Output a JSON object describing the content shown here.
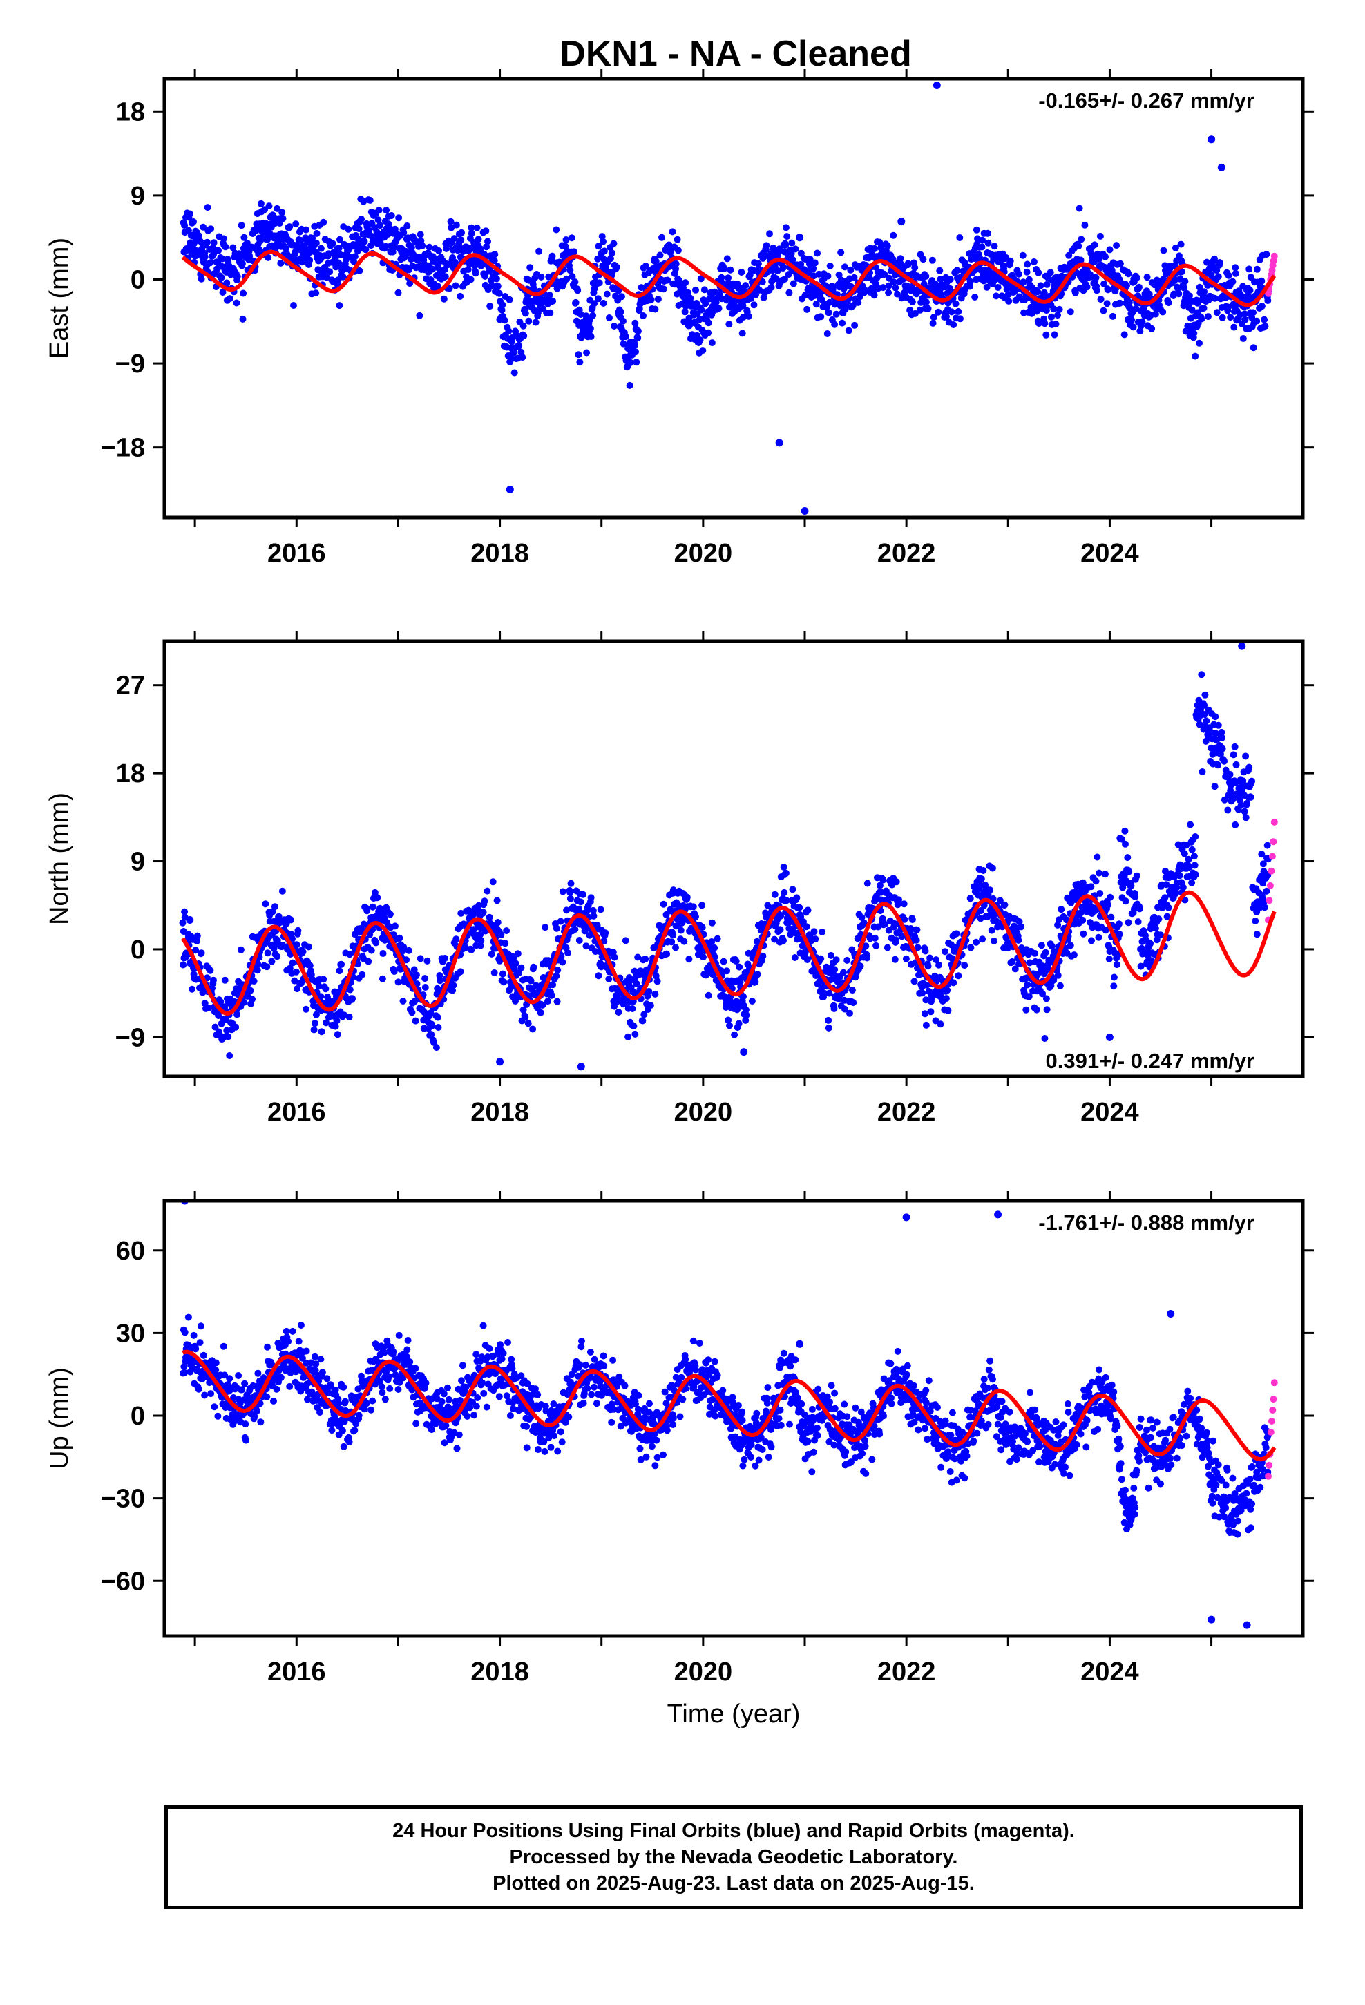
{
  "title": "DKN1  - NA - Cleaned",
  "colors": {
    "final": "#0000ff",
    "rapid": "#ff33cc",
    "model": "#ff0000"
  },
  "chart_data": [
    {
      "type": "scatter",
      "name": "east",
      "ylabel": "East (mm)",
      "ylim": [
        -25.5,
        21.5
      ],
      "xlim": [
        2014.7,
        2025.9
      ],
      "xticks": [
        2016,
        2018,
        2020,
        2022,
        2024
      ],
      "yticks": [
        18,
        9,
        0,
        -9,
        -18
      ],
      "ytick_labels": [
        "18",
        "9",
        "0",
        "−9",
        "−18"
      ],
      "rate_label": "-0.165+/- 0.267 mm/yr",
      "rate_position": "top-right",
      "data_start": 2014.88,
      "data_end": 2025.62,
      "model": {
        "offset": 0.2,
        "trend": -0.165,
        "annual_amp": 1.9,
        "annual_phase": 0.55,
        "semi_amp": 0.4,
        "noise": 1.6,
        "anomalies": [
          {
            "start": 2017.95,
            "end": 2018.3,
            "depth": -7
          },
          {
            "start": 2018.7,
            "end": 2018.95,
            "depth": -8
          },
          {
            "start": 2019.15,
            "end": 2019.4,
            "depth": -7
          },
          {
            "start": 2019.7,
            "end": 2020.15,
            "depth": -6
          },
          {
            "start": 2024.7,
            "end": 2024.95,
            "depth": -6
          }
        ],
        "steps": [
          {
            "start": 2014.88,
            "end": 2017.6,
            "shift": 2.5
          }
        ]
      },
      "outliers": [
        [
          2022.3,
          20.8
        ],
        [
          2018.1,
          -22.5
        ],
        [
          2020.75,
          -17.5
        ],
        [
          2021.0,
          -24.8
        ],
        [
          2025.0,
          15.0
        ],
        [
          2025.1,
          12.0
        ],
        [
          2021.95,
          6.2
        ],
        [
          2020.95,
          4.5
        ]
      ],
      "rapid": {
        "start": 2025.56,
        "end": 2025.62,
        "y": [
          -1.5,
          -1,
          -0.5,
          0,
          0.5,
          1,
          1.5,
          2,
          2.5
        ]
      }
    },
    {
      "type": "scatter",
      "name": "north",
      "ylabel": "North (mm)",
      "ylim": [
        -13,
        31.5
      ],
      "xlim": [
        2014.7,
        2025.9
      ],
      "xticks": [
        2016,
        2018,
        2020,
        2022,
        2024
      ],
      "yticks": [
        27,
        18,
        9,
        0,
        -9
      ],
      "ytick_labels": [
        "27",
        "18",
        "9",
        "0",
        "−9"
      ],
      "rate_label": "0.391+/- 0.247 mm/yr",
      "rate_position": "bottom-right",
      "data_start": 2014.88,
      "data_end": 2025.62,
      "model": {
        "offset": -0.4,
        "trend": 0.391,
        "annual_amp": 4.3,
        "annual_phase": 0.55,
        "semi_amp": 0.3,
        "noise": 1.7,
        "anomalies": [],
        "steps": [
          {
            "start": 2024.1,
            "end": 2024.3,
            "shift": 8
          },
          {
            "start": 2024.3,
            "end": 2024.85,
            "shift": 3
          },
          {
            "start": 2024.85,
            "end": 2025.4,
            "shift": 19
          },
          {
            "start": 2025.4,
            "end": 2025.62,
            "shift": 6
          }
        ]
      },
      "outliers": [
        [
          2025.3,
          31.0
        ],
        [
          2018.0,
          -11.5
        ],
        [
          2018.8,
          -12.0
        ],
        [
          2020.4,
          -10.5
        ],
        [
          2024.0,
          -9.0
        ],
        [
          2014.95,
          3.0
        ]
      ],
      "rapid": {
        "start": 2025.56,
        "end": 2025.62,
        "y": [
          3,
          5,
          6.5,
          8,
          9.5,
          11,
          13
        ]
      }
    },
    {
      "type": "scatter",
      "name": "up",
      "ylabel": "Up (mm)",
      "xlabel": "Time (year)",
      "ylim": [
        -80,
        78
      ],
      "xlim": [
        2014.7,
        2025.9
      ],
      "xticks": [
        2016,
        2018,
        2020,
        2022,
        2024
      ],
      "yticks": [
        60,
        30,
        0,
        -30,
        -60
      ],
      "ytick_labels": [
        "60",
        "30",
        "0",
        "−30",
        "−60"
      ],
      "rate_label": "-1.761+/- 0.888 mm/yr",
      "rate_position": "top-right",
      "data_start": 2014.88,
      "data_end": 2025.62,
      "model": {
        "offset": 4,
        "trend": -1.761,
        "annual_amp": 10,
        "annual_phase": 0.7,
        "semi_amp": 1,
        "noise": 5,
        "anomalies": [
          {
            "start": 2020.9,
            "end": 2021.15,
            "depth": -18
          },
          {
            "start": 2022.85,
            "end": 2023.2,
            "depth": -16
          },
          {
            "start": 2024.05,
            "end": 2024.3,
            "depth": -35
          },
          {
            "start": 2024.8,
            "end": 2025.5,
            "depth": -30
          }
        ],
        "steps": []
      },
      "outliers": [
        [
          2014.9,
          78.0
        ],
        [
          2022.0,
          72.0
        ],
        [
          2022.9,
          73.0
        ],
        [
          2024.6,
          37.0
        ],
        [
          2025.0,
          -74.0
        ],
        [
          2025.35,
          -76.0
        ],
        [
          2020.95,
          26.0
        ],
        [
          2015.0,
          25.0
        ]
      ],
      "rapid": {
        "start": 2025.56,
        "end": 2025.62,
        "y": [
          -22,
          -18,
          -14,
          -6,
          -2,
          2,
          6,
          12
        ]
      }
    }
  ],
  "footer": {
    "line1": "24 Hour Positions Using Final Orbits (blue) and Rapid Orbits (magenta).",
    "line2": "Processed by the Nevada Geodetic Laboratory.",
    "line3": "Plotted on 2025-Aug-23. Last data on 2025-Aug-15."
  }
}
